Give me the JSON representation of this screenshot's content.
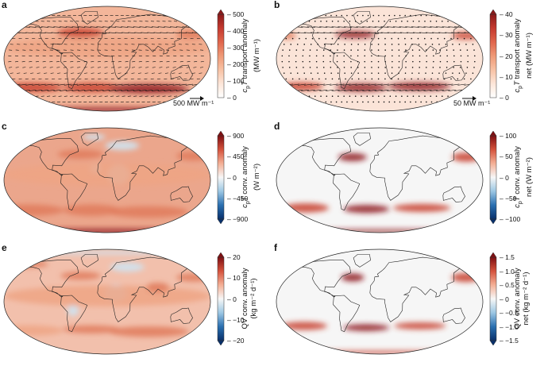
{
  "panels": [
    {
      "id": "a",
      "letter": "a",
      "colorbar": {
        "label_line1": "c",
        "label_line1_sub": "p",
        "label_line1_rest": "T transport anomaly",
        "label_line2": "(MW m⁻¹)",
        "ticks": [
          "500",
          "400",
          "300",
          "200",
          "100",
          "0"
        ],
        "palette": [
          "#ffffff",
          "#fde6d9",
          "#f8c2a5",
          "#ef9a77",
          "#e0664c",
          "#c53a2f",
          "#8b1a1a"
        ],
        "extend": "max"
      },
      "scale_label": "500 MW m⁻¹",
      "has_vectors": true,
      "base_color": "#f3b69a"
    },
    {
      "id": "b",
      "letter": "b",
      "colorbar": {
        "label_line1": "c",
        "label_line1_sub": "p",
        "label_line1_rest": "T transport anomaly",
        "label_line2": "net (MW m⁻¹)",
        "ticks": [
          "40",
          "30",
          "20",
          "10",
          "0"
        ],
        "palette": [
          "#ffffff",
          "#fde6d9",
          "#f8c2a5",
          "#ef9a77",
          "#e0664c",
          "#c53a2f",
          "#8b1a1a"
        ],
        "extend": "max"
      },
      "scale_label": "50 MW m⁻¹",
      "has_vectors": true,
      "base_color": "#fbe4d8"
    },
    {
      "id": "c",
      "letter": "c",
      "colorbar": {
        "label_line1": "c",
        "label_line1_sub": "p",
        "label_line1_rest": "T conv. anomaly",
        "label_line2": "(W m⁻²)",
        "ticks": [
          "900",
          "450",
          "0",
          "−450",
          "−900"
        ],
        "palette": [
          "#08306b",
          "#2a6fb0",
          "#9cc7e3",
          "#f7f7f7",
          "#f4b096",
          "#d5533d",
          "#7f0f12"
        ],
        "extend": "both"
      },
      "scale_label": "",
      "has_vectors": false,
      "base_color": "#eba68c"
    },
    {
      "id": "d",
      "letter": "d",
      "colorbar": {
        "label_line1": "c",
        "label_line1_sub": "p",
        "label_line1_rest": "T conv. anomaly",
        "label_line2": "net (W m⁻²)",
        "ticks": [
          "100",
          "50",
          "0",
          "−50",
          "−100"
        ],
        "palette": [
          "#08306b",
          "#2a6fb0",
          "#9cc7e3",
          "#f7f7f7",
          "#f4b096",
          "#d5533d",
          "#7f0f12"
        ],
        "extend": "both"
      },
      "scale_label": "",
      "has_vectors": false,
      "base_color": "#f6f6f6"
    },
    {
      "id": "e",
      "letter": "e",
      "colorbar": {
        "label_line1": "QV conv. anomaly",
        "label_line1_sub": "",
        "label_line1_rest": "",
        "label_line2": "(kg m⁻² d⁻¹)",
        "ticks": [
          "20",
          "10",
          "0",
          "−10",
          "−20"
        ],
        "palette": [
          "#08306b",
          "#2a6fb0",
          "#9cc7e3",
          "#f7f7f7",
          "#f4b096",
          "#d5533d",
          "#7f0f12"
        ],
        "extend": "both"
      },
      "scale_label": "",
      "has_vectors": false,
      "base_color": "#f2c0ac"
    },
    {
      "id": "f",
      "letter": "f",
      "colorbar": {
        "label_line1": "QV conv. anomaly",
        "label_line1_sub": "",
        "label_line1_rest": "",
        "label_line2": "net (kg m⁻² d⁻¹)",
        "ticks": [
          "1.5",
          "1.0",
          "0.5",
          "0",
          "−0.5",
          "−1.0",
          "−1.5"
        ],
        "palette": [
          "#08306b",
          "#2a6fb0",
          "#9cc7e3",
          "#f7f7f7",
          "#f4b096",
          "#d5533d",
          "#7f0f12"
        ],
        "extend": "both"
      },
      "scale_label": "",
      "has_vectors": false,
      "base_color": "#f6f6f6"
    }
  ]
}
